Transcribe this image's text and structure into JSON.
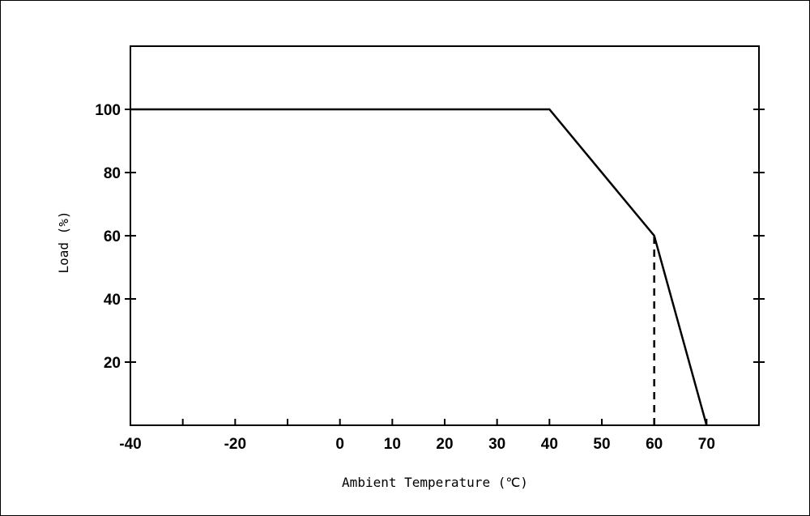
{
  "chart_data": {
    "type": "line",
    "title": "",
    "xlabel": "Ambient Temperature (℃)",
    "ylabel": "Load (%)",
    "xlim": [
      -40,
      80
    ],
    "ylim": [
      0,
      120
    ],
    "x_ticks": [
      -40,
      -30,
      -20,
      -10,
      0,
      10,
      20,
      30,
      40,
      50,
      60,
      70
    ],
    "x_tick_labels": [
      "-40",
      "-20",
      "0",
      "10",
      "20",
      "30",
      "40",
      "50",
      "60",
      "70"
    ],
    "x_tick_label_values": [
      -40,
      -20,
      0,
      10,
      20,
      30,
      40,
      50,
      60,
      70
    ],
    "y_ticks": [
      20,
      40,
      60,
      80,
      100
    ],
    "y_tick_labels": [
      "20",
      "40",
      "60",
      "80",
      "100"
    ],
    "grid": false,
    "series": [
      {
        "style": "solid",
        "color": "#000000",
        "x": [
          -40,
          40,
          60,
          70
        ],
        "y": [
          100,
          100,
          60,
          0
        ]
      }
    ],
    "reference_lines": [
      {
        "style": "dashed",
        "color": "#000000",
        "x": [
          60,
          60
        ],
        "y": [
          0,
          60
        ]
      }
    ]
  }
}
